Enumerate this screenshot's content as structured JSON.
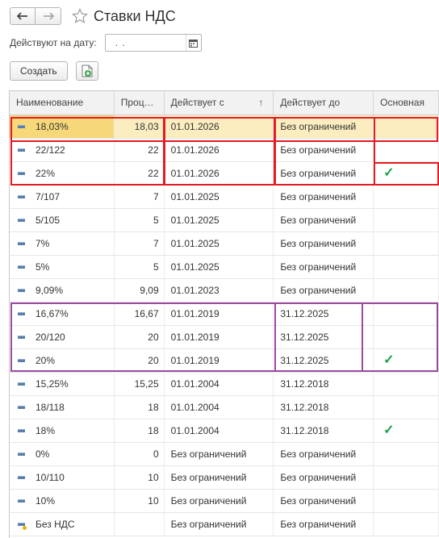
{
  "window": {
    "title": "Ставки НДС"
  },
  "filter": {
    "label": "Действуют на дату:",
    "date_value": ".   ."
  },
  "toolbar": {
    "create_label": "Создать"
  },
  "table": {
    "columns": [
      "Наименование",
      "Проц…",
      "Действует с",
      "Действует до",
      "Основная"
    ],
    "sort_indicator": "↑",
    "rows": [
      {
        "name": "18,03%",
        "pct": "18,03",
        "from": "01.01.2026",
        "to": "Без ограничений",
        "main": ""
      },
      {
        "name": "22/122",
        "pct": "22",
        "from": "01.01.2026",
        "to": "Без ограничений",
        "main": ""
      },
      {
        "name": "22%",
        "pct": "22",
        "from": "01.01.2026",
        "to": "Без ограничений",
        "main": "✓"
      },
      {
        "name": "7/107",
        "pct": "7",
        "from": "01.01.2025",
        "to": "Без ограничений",
        "main": ""
      },
      {
        "name": "5/105",
        "pct": "5",
        "from": "01.01.2025",
        "to": "Без ограничений",
        "main": ""
      },
      {
        "name": "7%",
        "pct": "7",
        "from": "01.01.2025",
        "to": "Без ограничений",
        "main": ""
      },
      {
        "name": "5%",
        "pct": "5",
        "from": "01.01.2025",
        "to": "Без ограничений",
        "main": ""
      },
      {
        "name": "9,09%",
        "pct": "9,09",
        "from": "01.01.2023",
        "to": "Без ограничений",
        "main": ""
      },
      {
        "name": "16,67%",
        "pct": "16,67",
        "from": "01.01.2019",
        "to": "31.12.2025",
        "main": ""
      },
      {
        "name": "20/120",
        "pct": "20",
        "from": "01.01.2019",
        "to": "31.12.2025",
        "main": ""
      },
      {
        "name": "20%",
        "pct": "20",
        "from": "01.01.2019",
        "to": "31.12.2025",
        "main": "✓"
      },
      {
        "name": "15,25%",
        "pct": "15,25",
        "from": "01.01.2004",
        "to": "31.12.2018",
        "main": ""
      },
      {
        "name": "18/118",
        "pct": "18",
        "from": "01.01.2004",
        "to": "31.12.2018",
        "main": ""
      },
      {
        "name": "18%",
        "pct": "18",
        "from": "01.01.2004",
        "to": "31.12.2018",
        "main": "✓"
      },
      {
        "name": "0%",
        "pct": "0",
        "from": "Без ограничений",
        "to": "Без ограничений",
        "main": ""
      },
      {
        "name": "10/110",
        "pct": "10",
        "from": "Без ограничений",
        "to": "Без ограничений",
        "main": ""
      },
      {
        "name": "10%",
        "pct": "10",
        "from": "Без ограничений",
        "to": "Без ограничений",
        "main": ""
      },
      {
        "name": "Без НДС",
        "pct": "",
        "from": "Без ограничений",
        "to": "Без ограничений",
        "main": "",
        "special": true
      }
    ]
  },
  "colors": {
    "highlight_red": "#e31c24",
    "highlight_purple": "#9c4aa0",
    "check_green": "#1aa34a",
    "selected_row": "#fbedc0"
  },
  "icons": [
    "back-arrow-icon",
    "forward-arrow-icon",
    "favorite-star-icon",
    "calendar-icon",
    "add-from-template-icon",
    "row-item-icon",
    "check-icon"
  ]
}
